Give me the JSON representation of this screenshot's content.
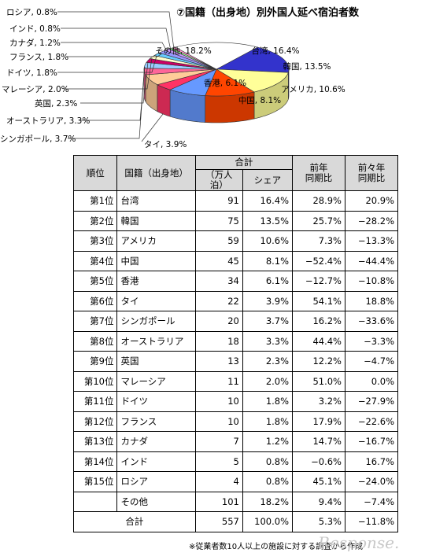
{
  "chart_data": {
    "type": "pie",
    "title": "⑦国籍（出身地）別外国人延べ宿泊者数",
    "slices": [
      {
        "label": "台湾, 16.4%",
        "value": 16.4,
        "color": "#3333cc"
      },
      {
        "label": "韓国, 13.5%",
        "value": 13.5,
        "color": "#ffff99"
      },
      {
        "label": "アメリカ, 10.6%",
        "value": 10.6,
        "color": "#ff4500"
      },
      {
        "label": "中国, 8.1%",
        "value": 8.1,
        "color": "#6699ff"
      },
      {
        "label": "タイ, 3.9%",
        "value": 3.9,
        "color": "#ff3366"
      },
      {
        "label": "香港, 6.1%",
        "value": 6.1,
        "color": "#ffcc99"
      },
      {
        "label": "シンガポール, 3.7%",
        "value": 3.7,
        "color": "#ff6699"
      },
      {
        "label": "オーストラリア, 3.3%",
        "value": 3.3,
        "color": "#99ccff"
      },
      {
        "label": "英国, 2.3%",
        "value": 2.3,
        "color": "#cc0066"
      },
      {
        "label": "マレーシア, 2.0%",
        "value": 2.0,
        "color": "#ffffcc"
      },
      {
        "label": "ドイツ, 1.8%",
        "value": 1.8,
        "color": "#66ccff"
      },
      {
        "label": "フランス, 1.8%",
        "value": 1.8,
        "color": "#9999ff"
      },
      {
        "label": "カナダ, 1.2%",
        "value": 1.2,
        "color": "#cc99ff"
      },
      {
        "label": "インド, 0.8%",
        "value": 0.8,
        "color": "#99ff99"
      },
      {
        "label": "ロシア, 0.8%",
        "value": 0.8,
        "color": "#ff99cc"
      },
      {
        "label": "その他, 18.2%",
        "value": 18.2,
        "color": "#ffffff"
      }
    ]
  },
  "table": {
    "headers": {
      "rank": "順位",
      "country": "国籍（出身地）",
      "total": "合計",
      "persons": "（万人泊）",
      "share": "シェア",
      "prev_year_1": "前年",
      "prev_year_2": "同期比",
      "prev2_year_1": "前々年",
      "prev2_year_2": "同期比"
    },
    "rows": [
      {
        "rank": "第1位",
        "country": "台湾",
        "persons": "91",
        "share": "16.4%",
        "yoy": "28.9%",
        "yoy2": "20.9%"
      },
      {
        "rank": "第2位",
        "country": "韓国",
        "persons": "75",
        "share": "13.5%",
        "yoy": "25.7%",
        "yoy2": "−28.2%"
      },
      {
        "rank": "第3位",
        "country": "アメリカ",
        "persons": "59",
        "share": "10.6%",
        "yoy": "7.3%",
        "yoy2": "−13.3%"
      },
      {
        "rank": "第4位",
        "country": "中国",
        "persons": "45",
        "share": "8.1%",
        "yoy": "−52.4%",
        "yoy2": "−44.4%"
      },
      {
        "rank": "第5位",
        "country": "香港",
        "persons": "34",
        "share": "6.1%",
        "yoy": "−12.7%",
        "yoy2": "−10.8%"
      },
      {
        "rank": "第6位",
        "country": "タイ",
        "persons": "22",
        "share": "3.9%",
        "yoy": "54.1%",
        "yoy2": "18.8%"
      },
      {
        "rank": "第7位",
        "country": "シンガポール",
        "persons": "20",
        "share": "3.7%",
        "yoy": "16.2%",
        "yoy2": "−33.6%"
      },
      {
        "rank": "第8位",
        "country": "オーストラリア",
        "persons": "18",
        "share": "3.3%",
        "yoy": "44.4%",
        "yoy2": "−3.3%"
      },
      {
        "rank": "第9位",
        "country": "英国",
        "persons": "13",
        "share": "2.3%",
        "yoy": "12.2%",
        "yoy2": "−4.7%"
      },
      {
        "rank": "第10位",
        "country": "マレーシア",
        "persons": "11",
        "share": "2.0%",
        "yoy": "51.0%",
        "yoy2": "0.0%"
      },
      {
        "rank": "第11位",
        "country": "ドイツ",
        "persons": "10",
        "share": "1.8%",
        "yoy": "3.2%",
        "yoy2": "−27.9%"
      },
      {
        "rank": "第12位",
        "country": "フランス",
        "persons": "10",
        "share": "1.8%",
        "yoy": "17.9%",
        "yoy2": "−22.6%"
      },
      {
        "rank": "第13位",
        "country": "カナダ",
        "persons": "7",
        "share": "1.2%",
        "yoy": "14.7%",
        "yoy2": "−16.7%"
      },
      {
        "rank": "第14位",
        "country": "インド",
        "persons": "5",
        "share": "0.8%",
        "yoy": "−0.6%",
        "yoy2": "16.7%"
      },
      {
        "rank": "第15位",
        "country": "ロシア",
        "persons": "4",
        "share": "0.8%",
        "yoy": "45.1%",
        "yoy2": "−24.0%"
      },
      {
        "rank": "",
        "country": "その他",
        "persons": "101",
        "share": "18.2%",
        "yoy": "9.4%",
        "yoy2": "−7.4%"
      }
    ],
    "total_row": {
      "label": "合計",
      "persons": "557",
      "share": "100.0%",
      "yoy": "5.3%",
      "yoy2": "−11.8%"
    }
  },
  "footnote": "※従業者数10人以上の施設に対する調査から作成",
  "watermark": "Response."
}
